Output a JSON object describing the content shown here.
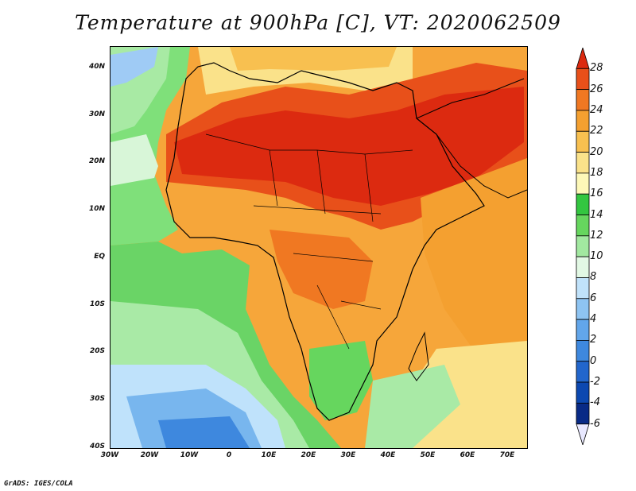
{
  "title": "Temperature at 900hPa [C], VT: 2020062509",
  "credit": "GrADS: IGES/COLA",
  "map": {
    "lat_labels": [
      "40N",
      "30N",
      "20N",
      "10N",
      "EQ",
      "10S",
      "20S",
      "30S",
      "40S"
    ],
    "lon_labels": [
      "30W",
      "20W",
      "10W",
      "0",
      "10E",
      "20E",
      "30E",
      "40E",
      "50E",
      "60E",
      "70E"
    ],
    "lat_range": [
      -40,
      45
    ],
    "lon_range": [
      -30,
      75
    ]
  },
  "colorbar": {
    "labels": [
      "28",
      "26",
      "24",
      "22",
      "20",
      "18",
      "16",
      "14",
      "12",
      "10",
      "8",
      "6",
      "4",
      "2",
      "0",
      "-2",
      "-4",
      "-6"
    ],
    "colors": [
      "#dc2a10",
      "#e8501a",
      "#f07822",
      "#f4a030",
      "#f8c050",
      "#fae28a",
      "#fdf8b8",
      "#33c640",
      "#66d65e",
      "#a2e8a0",
      "#e2f8e4",
      "#c0e2fa",
      "#8ec4f2",
      "#62a6ea",
      "#3e88de",
      "#2266cc",
      "#0c48b0",
      "#082a86",
      "#e8e8ff"
    ]
  }
}
